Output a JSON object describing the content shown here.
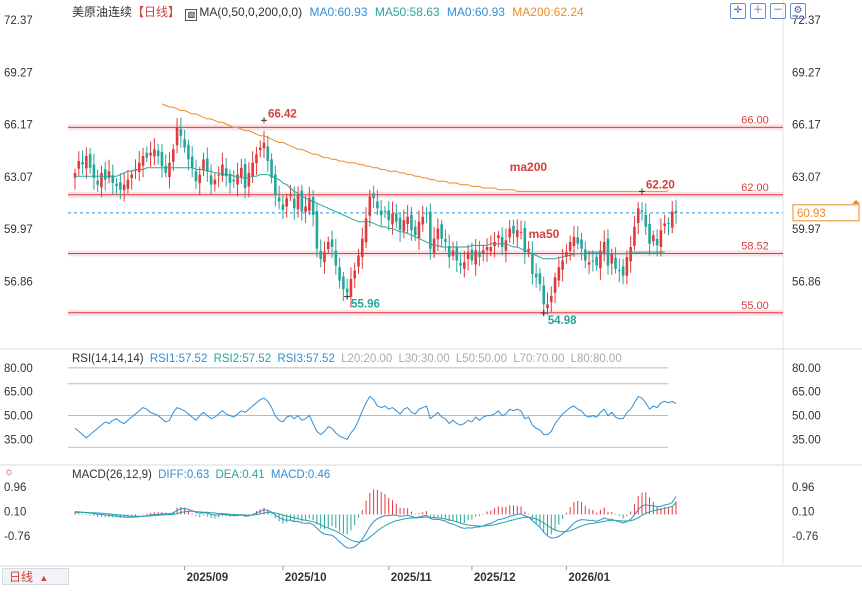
{
  "header": {
    "symbol": "美原油连续",
    "period": "【日线】",
    "ma_label": "MA(0,50,0,200,0,0)",
    "ma_values": [
      {
        "text": "MA0:60.93",
        "color": "#2f8fd8"
      },
      {
        "text": "MA50:58.63",
        "color": "#26a69a"
      },
      {
        "text": "MA0:60.93",
        "color": "#2f8fd8"
      },
      {
        "text": "MA200:62.24",
        "color": "#f08a24"
      }
    ]
  },
  "toolbar": {
    "icons": [
      "crosshair-icon",
      "zoom-in-icon",
      "zoom-out-icon",
      "settings-icon"
    ]
  },
  "colors": {
    "up": "#e03a3e",
    "down": "#26a69a",
    "ma50": "#26a69a",
    "ma200": "#f08a24",
    "rsi": "#2f8fd8",
    "dea": "#2f8fd8"
  },
  "chart_data": [
    {
      "type": "candlestick",
      "title": "美原油连续",
      "ylim": [
        53.8,
        72.37
      ],
      "y_ticks": [
        "72.37",
        "69.27",
        "66.17",
        "63.07",
        "59.97",
        "56.86"
      ],
      "price_line": {
        "value": 60.93,
        "label": "60.93"
      },
      "horizontal_levels": [
        {
          "value": 66.0,
          "label": "66.00"
        },
        {
          "value": 62.0,
          "label": "62.00"
        },
        {
          "value": 58.52,
          "label": "58.52"
        },
        {
          "value": 55.0,
          "label": "55.00"
        }
      ],
      "annotations": [
        {
          "text": "66.42",
          "bar": 50,
          "value": 66.42
        },
        {
          "text": "55.96",
          "bar": 72,
          "value": 55.96
        },
        {
          "text": "62.20",
          "bar": 150,
          "value": 62.2
        },
        {
          "text": "54.98",
          "bar": 124,
          "value": 54.98
        }
      ],
      "series_labels": [
        {
          "text": "ma200",
          "bar": 115,
          "value": 63.4
        },
        {
          "text": "ma50",
          "bar": 120,
          "value": 59.45
        }
      ],
      "x_ticks": [
        {
          "label": "2025/09",
          "bar": 29
        },
        {
          "label": "2025/10",
          "bar": 55
        },
        {
          "label": "2025/11",
          "bar": 83
        },
        {
          "label": "2025/12",
          "bar": 105
        },
        {
          "label": "2026/01",
          "bar": 130
        }
      ],
      "closes": [
        63.3,
        64.0,
        63.8,
        64.3,
        63.6,
        63.0,
        62.6,
        63.3,
        62.9,
        63.4,
        62.7,
        62.5,
        62.3,
        62.6,
        62.9,
        63.2,
        63.5,
        63.9,
        64.3,
        64.2,
        64.5,
        64.7,
        64.3,
        63.7,
        63.3,
        63.9,
        64.7,
        66.0,
        65.5,
        64.8,
        64.1,
        63.6,
        62.8,
        63.2,
        64.1,
        63.4,
        62.6,
        62.9,
        63.2,
        63.8,
        63.1,
        62.7,
        62.8,
        63.2,
        63.6,
        62.4,
        63.3,
        63.9,
        64.4,
        64.8,
        65.1,
        64.0,
        63.0,
        62.0,
        61.6,
        61.1,
        61.8,
        62.0,
        61.2,
        62.0,
        61.0,
        61.3,
        61.8,
        60.8,
        58.8,
        58.2,
        58.6,
        59.2,
        58.9,
        57.8,
        56.9,
        56.4,
        56.2,
        57.0,
        57.5,
        58.4,
        59.4,
        60.6,
        61.9,
        61.8,
        61.2,
        60.8,
        61.0,
        60.5,
        60.9,
        60.4,
        59.9,
        60.5,
        60.7,
        59.9,
        59.6,
        60.4,
        60.7,
        60.9,
        58.8,
        59.4,
        60.0,
        59.4,
        59.2,
        58.3,
        58.7,
        58.1,
        57.8,
        58.0,
        58.6,
        58.1,
        58.7,
        58.3,
        58.7,
        58.9,
        58.9,
        59.2,
        59.6,
        58.9,
        59.3,
        60.0,
        59.7,
        59.9,
        59.8,
        58.6,
        58.8,
        57.3,
        57.1,
        56.7,
        55.5,
        55.5,
        56.0,
        57.1,
        57.7,
        58.1,
        58.6,
        59.2,
        59.5,
        59.1,
        58.8,
        58.1,
        58.0,
        58.1,
        57.8,
        58.7,
        59.2,
        57.8,
        58.5,
        57.6,
        57.5,
        57.2,
        58.3,
        58.9,
        60.1,
        61.2,
        61.0,
        60.1,
        59.1,
        59.6,
        59.0,
        59.9,
        60.3,
        60.3,
        61.0,
        60.93
      ],
      "ma50": [
        63.1,
        63.1,
        63.1,
        63.1,
        63.1,
        63.1,
        63.1,
        63.1,
        63.1,
        63.1,
        63.1,
        63.1,
        63.2,
        63.3,
        63.4,
        63.4,
        63.5,
        63.5,
        63.5,
        63.6,
        63.6,
        63.6,
        63.6,
        63.6,
        63.6,
        63.6,
        63.6,
        63.6,
        63.6,
        63.6,
        63.6,
        63.6,
        63.5,
        63.5,
        63.5,
        63.4,
        63.4,
        63.3,
        63.3,
        63.2,
        63.2,
        63.2,
        63.1,
        63.1,
        63.0,
        63.0,
        63.0,
        63.1,
        63.1,
        63.2,
        63.2,
        63.2,
        63.1,
        63.0,
        62.9,
        62.7,
        62.6,
        62.4,
        62.2,
        62.1,
        61.9,
        61.8,
        61.7,
        61.6,
        61.5,
        61.4,
        61.3,
        61.2,
        61.1,
        61.0,
        60.9,
        60.8,
        60.7,
        60.6,
        60.5,
        60.4,
        60.4,
        60.4,
        60.4,
        60.3,
        60.2,
        60.1,
        60.1,
        60.0,
        60.0,
        59.9,
        59.8,
        59.8,
        59.7,
        59.6,
        59.5,
        59.4,
        59.3,
        59.2,
        59.1,
        59.0,
        59.0,
        58.9,
        58.9,
        58.9,
        58.9,
        58.9,
        58.9,
        58.9,
        58.9,
        59.0,
        59.0,
        59.0,
        59.0,
        59.0,
        59.1,
        59.1,
        59.1,
        59.1,
        59.1,
        59.0,
        58.9,
        58.9,
        58.8,
        58.7,
        58.6,
        58.5,
        58.4,
        58.3,
        58.2,
        58.2,
        58.2,
        58.2,
        58.3,
        58.3,
        58.4,
        58.4,
        58.5,
        58.5,
        58.5,
        58.5,
        58.6,
        58.6,
        58.6,
        58.6,
        58.5,
        58.5,
        58.5,
        58.5,
        58.5,
        58.5,
        58.5,
        58.6,
        58.6,
        58.6,
        58.6,
        58.6,
        58.6,
        58.6,
        58.6,
        58.6,
        58.63
      ],
      "ma200_start_bar": 23,
      "ma200": [
        67.4,
        67.3,
        67.2,
        67.2,
        67.1,
        67.0,
        67.0,
        66.9,
        66.8,
        66.8,
        66.7,
        66.6,
        66.5,
        66.5,
        66.4,
        66.3,
        66.3,
        66.2,
        66.1,
        66.0,
        66.0,
        65.9,
        65.8,
        65.8,
        65.7,
        65.6,
        65.5,
        65.5,
        65.4,
        65.3,
        65.2,
        65.1,
        65.1,
        65.0,
        64.9,
        64.8,
        64.7,
        64.7,
        64.6,
        64.5,
        64.4,
        64.4,
        64.3,
        64.2,
        64.2,
        64.1,
        64.1,
        64.0,
        64.0,
        63.9,
        63.9,
        63.9,
        63.8,
        63.8,
        63.7,
        63.7,
        63.6,
        63.6,
        63.5,
        63.5,
        63.4,
        63.4,
        63.4,
        63.3,
        63.3,
        63.2,
        63.2,
        63.1,
        63.1,
        63.0,
        63.0,
        62.9,
        62.9,
        62.8,
        62.8,
        62.8,
        62.7,
        62.7,
        62.7,
        62.6,
        62.6,
        62.6,
        62.5,
        62.5,
        62.5,
        62.4,
        62.4,
        62.4,
        62.4,
        62.3,
        62.3,
        62.3,
        62.3,
        62.3,
        62.2,
        62.2,
        62.2,
        62.2,
        62.2,
        62.2,
        62.2,
        62.2,
        62.2,
        62.2,
        62.2,
        62.2,
        62.2,
        62.2,
        62.2,
        62.2,
        62.2,
        62.2,
        62.2,
        62.2,
        62.2,
        62.2,
        62.2,
        62.2,
        62.2,
        62.2,
        62.2,
        62.2,
        62.2,
        62.2,
        62.2,
        62.2,
        62.2,
        62.2,
        62.2,
        62.2,
        62.2,
        62.2,
        62.2,
        62.2,
        62.24
      ]
    },
    {
      "type": "line",
      "title": "RSI(14,14,14)",
      "legend": [
        {
          "text": "RSI1:57.52",
          "color": "#2f8fd8"
        },
        {
          "text": "RSI2:57.52",
          "color": "#26a69a"
        },
        {
          "text": "RSI3:57.52",
          "color": "#2f8fd8"
        },
        {
          "text": "L20:20.00",
          "color": "#aaaaaa"
        },
        {
          "text": "L30:30.00",
          "color": "#aaaaaa"
        },
        {
          "text": "L50:50.00",
          "color": "#aaaaaa"
        },
        {
          "text": "L70:70.00",
          "color": "#aaaaaa"
        },
        {
          "text": "L80:80.00",
          "color": "#aaaaaa"
        }
      ],
      "ylim": [
        22,
        85
      ],
      "y_ticks": [
        "80.00",
        "65.00",
        "50.00",
        "35.00"
      ],
      "levels": [
        80,
        70,
        50,
        30
      ],
      "values": [
        42,
        40,
        38,
        36,
        38,
        40,
        42,
        44,
        46,
        45,
        47,
        48,
        46,
        45,
        47,
        49,
        51,
        53,
        55,
        54,
        52,
        51,
        50,
        48,
        46,
        47,
        52,
        55,
        54,
        53,
        51,
        49,
        47,
        50,
        52,
        50,
        48,
        49,
        51,
        53,
        51,
        50,
        49,
        51,
        53,
        52,
        54,
        56,
        58,
        60,
        61,
        59,
        55,
        50,
        47,
        46,
        49,
        50,
        48,
        50,
        47,
        48,
        50,
        45,
        40,
        38,
        40,
        43,
        42,
        39,
        37,
        36,
        35,
        39,
        42,
        47,
        53,
        58,
        62,
        60,
        56,
        55,
        56,
        54,
        55,
        53,
        51,
        54,
        55,
        52,
        51,
        54,
        55,
        56,
        48,
        50,
        52,
        49,
        48,
        45,
        47,
        45,
        44,
        45,
        47,
        46,
        49,
        47,
        49,
        50,
        50,
        51,
        53,
        50,
        51,
        54,
        53,
        54,
        53,
        48,
        49,
        44,
        42,
        41,
        38,
        38,
        40,
        45,
        48,
        51,
        53,
        55,
        56,
        54,
        53,
        50,
        49,
        50,
        49,
        52,
        54,
        50,
        52,
        49,
        48,
        48,
        52,
        54,
        58,
        62,
        61,
        58,
        54,
        56,
        55,
        58,
        59,
        58,
        59,
        57.52
      ]
    },
    {
      "type": "line",
      "title": "MACD(26,12,9)",
      "legend": [
        {
          "text": "DIFF:0.63",
          "color": "#2f8fd8"
        },
        {
          "text": "DEA:0.41",
          "color": "#26a69a"
        },
        {
          "text": "MACD:0.46",
          "color": "#e03a3e"
        }
      ],
      "ylim": [
        -1.6,
        1.35
      ],
      "y_ticks": [
        "0.96",
        "0.10",
        "-0.76"
      ],
      "diff": [
        0.1,
        0.09,
        0.08,
        0.06,
        0.05,
        0.03,
        0.01,
        0.0,
        -0.02,
        -0.03,
        -0.05,
        -0.06,
        -0.08,
        -0.09,
        -0.1,
        -0.1,
        -0.09,
        -0.08,
        -0.06,
        -0.04,
        -0.02,
        0.0,
        0.01,
        0.02,
        0.02,
        0.02,
        0.05,
        0.15,
        0.2,
        0.21,
        0.18,
        0.13,
        0.07,
        0.04,
        0.06,
        0.04,
        0.0,
        -0.02,
        -0.02,
        0.0,
        -0.01,
        -0.03,
        -0.04,
        -0.04,
        -0.02,
        -0.06,
        -0.05,
        -0.01,
        0.05,
        0.11,
        0.17,
        0.15,
        0.08,
        -0.02,
        -0.1,
        -0.18,
        -0.2,
        -0.2,
        -0.25,
        -0.24,
        -0.3,
        -0.31,
        -0.3,
        -0.36,
        -0.48,
        -0.61,
        -0.69,
        -0.71,
        -0.73,
        -0.83,
        -0.96,
        -1.08,
        -1.18,
        -1.18,
        -1.14,
        -1.03,
        -0.87,
        -0.66,
        -0.42,
        -0.25,
        -0.15,
        -0.09,
        -0.04,
        -0.04,
        -0.02,
        -0.03,
        -0.07,
        -0.05,
        -0.03,
        -0.07,
        -0.11,
        -0.09,
        -0.06,
        -0.03,
        -0.14,
        -0.18,
        -0.17,
        -0.2,
        -0.23,
        -0.31,
        -0.34,
        -0.4,
        -0.46,
        -0.49,
        -0.47,
        -0.48,
        -0.44,
        -0.44,
        -0.4,
        -0.35,
        -0.31,
        -0.25,
        -0.18,
        -0.16,
        -0.12,
        -0.06,
        -0.03,
        0.0,
        0.02,
        -0.05,
        -0.09,
        -0.22,
        -0.33,
        -0.45,
        -0.62,
        -0.75,
        -0.83,
        -0.82,
        -0.77,
        -0.68,
        -0.57,
        -0.44,
        -0.3,
        -0.22,
        -0.18,
        -0.19,
        -0.21,
        -0.21,
        -0.24,
        -0.19,
        -0.12,
        -0.17,
        -0.17,
        -0.22,
        -0.26,
        -0.3,
        -0.25,
        -0.17,
        -0.02,
        0.17,
        0.3,
        0.34,
        0.31,
        0.31,
        0.27,
        0.29,
        0.33,
        0.36,
        0.42,
        0.63
      ],
      "dea": [
        0.06,
        0.07,
        0.07,
        0.07,
        0.06,
        0.06,
        0.05,
        0.04,
        0.03,
        0.02,
        0.0,
        -0.01,
        -0.02,
        -0.03,
        -0.05,
        -0.06,
        -0.06,
        -0.07,
        -0.07,
        -0.06,
        -0.05,
        -0.04,
        -0.03,
        -0.02,
        -0.01,
        -0.01,
        0.0,
        0.03,
        0.07,
        0.09,
        0.11,
        0.11,
        0.1,
        0.09,
        0.08,
        0.08,
        0.06,
        0.05,
        0.03,
        0.03,
        0.02,
        0.01,
        0.0,
        -0.01,
        -0.01,
        -0.02,
        -0.03,
        -0.02,
        -0.01,
        0.02,
        0.05,
        0.07,
        0.07,
        0.05,
        0.02,
        -0.02,
        -0.06,
        -0.09,
        -0.12,
        -0.15,
        -0.18,
        -0.21,
        -0.23,
        -0.26,
        -0.3,
        -0.36,
        -0.43,
        -0.48,
        -0.53,
        -0.59,
        -0.66,
        -0.74,
        -0.83,
        -0.9,
        -0.95,
        -0.97,
        -0.95,
        -0.9,
        -0.8,
        -0.69,
        -0.58,
        -0.48,
        -0.4,
        -0.33,
        -0.27,
        -0.22,
        -0.19,
        -0.16,
        -0.14,
        -0.12,
        -0.12,
        -0.11,
        -0.1,
        -0.09,
        -0.1,
        -0.11,
        -0.12,
        -0.14,
        -0.16,
        -0.19,
        -0.22,
        -0.26,
        -0.3,
        -0.34,
        -0.37,
        -0.39,
        -0.4,
        -0.41,
        -0.41,
        -0.4,
        -0.38,
        -0.36,
        -0.32,
        -0.29,
        -0.26,
        -0.22,
        -0.19,
        -0.15,
        -0.12,
        -0.1,
        -0.1,
        -0.12,
        -0.16,
        -0.22,
        -0.3,
        -0.39,
        -0.48,
        -0.55,
        -0.59,
        -0.61,
        -0.6,
        -0.57,
        -0.52,
        -0.46,
        -0.4,
        -0.36,
        -0.33,
        -0.31,
        -0.29,
        -0.27,
        -0.24,
        -0.22,
        -0.21,
        -0.21,
        -0.22,
        -0.23,
        -0.23,
        -0.22,
        -0.18,
        -0.11,
        -0.03,
        0.04,
        0.09,
        0.13,
        0.16,
        0.18,
        0.22,
        0.25,
        0.28,
        0.41
      ],
      "macd": [
        0.08,
        0.04,
        0.02,
        -0.02,
        -0.04,
        -0.06,
        -0.08,
        -0.08,
        -0.1,
        -0.1,
        -0.1,
        -0.1,
        -0.12,
        -0.12,
        -0.1,
        -0.08,
        -0.06,
        -0.02,
        0.02,
        0.04,
        0.06,
        0.08,
        0.08,
        0.08,
        0.06,
        0.06,
        0.1,
        0.24,
        0.26,
        0.24,
        0.14,
        0.04,
        -0.06,
        -0.1,
        -0.04,
        -0.08,
        -0.12,
        -0.14,
        -0.1,
        -0.06,
        -0.06,
        -0.08,
        -0.08,
        -0.06,
        -0.02,
        -0.08,
        -0.04,
        0.02,
        0.12,
        0.18,
        0.24,
        0.16,
        0.02,
        -0.14,
        -0.24,
        -0.32,
        -0.28,
        -0.22,
        -0.26,
        -0.18,
        -0.24,
        -0.2,
        -0.14,
        -0.2,
        -0.36,
        -0.5,
        -0.52,
        -0.46,
        -0.4,
        -0.48,
        -0.6,
        -0.68,
        -0.7,
        -0.56,
        -0.38,
        -0.12,
        0.16,
        0.48,
        0.76,
        0.88,
        0.86,
        0.78,
        0.72,
        0.58,
        0.5,
        0.38,
        0.24,
        0.22,
        0.22,
        0.1,
        0.02,
        0.04,
        0.08,
        0.12,
        -0.08,
        -0.14,
        -0.1,
        -0.12,
        -0.14,
        -0.24,
        -0.24,
        -0.28,
        -0.32,
        -0.3,
        -0.2,
        -0.18,
        -0.08,
        -0.06,
        0.02,
        0.1,
        0.14,
        0.22,
        0.28,
        0.26,
        0.28,
        0.32,
        0.32,
        0.3,
        0.28,
        0.1,
        0.02,
        -0.2,
        -0.34,
        -0.46,
        -0.64,
        -0.72,
        -0.7,
        -0.54,
        -0.36,
        -0.16,
        0.06,
        0.26,
        0.44,
        0.48,
        0.44,
        0.3,
        0.2,
        0.16,
        0.06,
        0.16,
        0.24,
        0.08,
        0.08,
        -0.02,
        -0.06,
        -0.14,
        -0.06,
        0.1,
        0.36,
        0.64,
        0.76,
        0.78,
        0.6,
        0.44,
        0.28,
        0.22,
        0.26,
        0.24,
        0.28,
        0.46
      ]
    }
  ],
  "bottom_tab": {
    "label": "日线",
    "arrow": "▲"
  }
}
